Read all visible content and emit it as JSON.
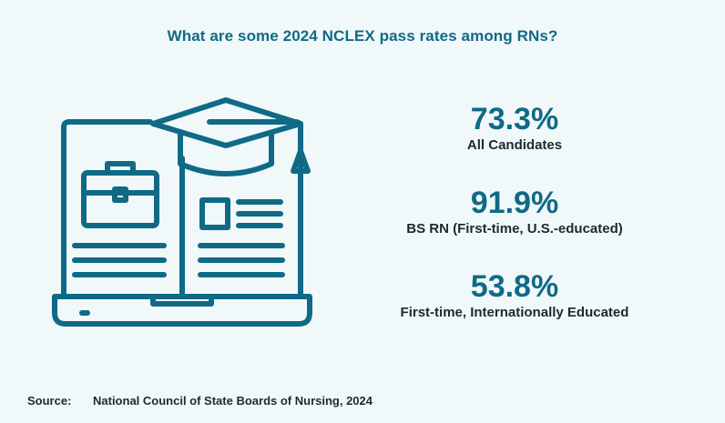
{
  "title": "What are some 2024 NCLEX pass rates among RNs?",
  "stats": [
    {
      "value": "73.3%",
      "label": "All Candidates"
    },
    {
      "value": "91.9%",
      "label": "BS RN (First-time, U.S.-educated)"
    },
    {
      "value": "53.8%",
      "label": "First-time, Internationally Educated"
    }
  ],
  "source": {
    "label": "Source:",
    "text": "National Council of State Boards of Nursing, 2024"
  },
  "colors": {
    "accent": "#0f6a86",
    "text": "#1b2a30",
    "background": "#f1f8f9"
  },
  "icons": [
    "laptop-book-graduation-cap-icon"
  ]
}
